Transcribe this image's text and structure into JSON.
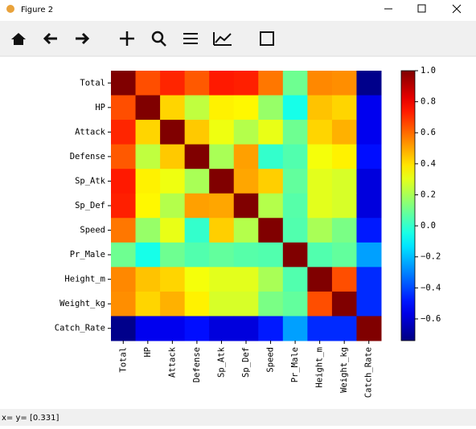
{
  "window": {
    "title": "Figure 2"
  },
  "status": "x= y= [0.331]",
  "chart_data": {
    "type": "heatmap",
    "colormap": "jet",
    "x_categories": [
      "Total",
      "HP",
      "Attack",
      "Defense",
      "Sp_Atk",
      "Sp_Def",
      "Speed",
      "Pr_Male",
      "Height_m",
      "Weight_kg",
      "Catch_Rate"
    ],
    "y_categories": [
      "Total",
      "HP",
      "Attack",
      "Defense",
      "Sp_Atk",
      "Sp_Def",
      "Speed",
      "Pr_Male",
      "Height_m",
      "Weight_kg",
      "Catch_Rate"
    ],
    "values": [
      [
        1,
        0.65,
        0.72,
        0.63,
        0.74,
        0.73,
        0.58,
        0.1,
        0.55,
        0.54,
        -0.72
      ],
      [
        0.65,
        1,
        0.42,
        0.24,
        0.37,
        0.36,
        0.17,
        -0.05,
        0.45,
        0.42,
        -0.55
      ],
      [
        0.72,
        0.42,
        1,
        0.44,
        0.32,
        0.22,
        0.31,
        0.1,
        0.42,
        0.48,
        -0.55
      ],
      [
        0.63,
        0.24,
        0.44,
        1,
        0.2,
        0.51,
        0.0,
        0.05,
        0.33,
        0.37,
        -0.5
      ],
      [
        0.74,
        0.37,
        0.32,
        0.2,
        1,
        0.5,
        0.43,
        0.08,
        0.3,
        0.28,
        -0.58
      ],
      [
        0.73,
        0.36,
        0.22,
        0.51,
        0.5,
        1,
        0.22,
        0.06,
        0.3,
        0.28,
        -0.58
      ],
      [
        0.58,
        0.17,
        0.31,
        0.0,
        0.43,
        0.22,
        1,
        0.05,
        0.2,
        0.12,
        -0.48
      ],
      [
        0.1,
        -0.05,
        0.1,
        0.05,
        0.08,
        0.06,
        0.05,
        1,
        0.05,
        0.08,
        -0.25
      ],
      [
        0.55,
        0.45,
        0.42,
        0.33,
        0.3,
        0.3,
        0.2,
        0.05,
        1,
        0.65,
        -0.45
      ],
      [
        0.54,
        0.42,
        0.48,
        0.37,
        0.28,
        0.28,
        0.12,
        0.08,
        0.65,
        1,
        -0.45
      ],
      [
        -0.72,
        -0.55,
        -0.55,
        -0.5,
        -0.58,
        -0.58,
        -0.48,
        -0.25,
        -0.45,
        -0.45,
        1
      ]
    ],
    "clim": [
      -0.74,
      1
    ],
    "cticks": [
      {
        "value": 1,
        "label": "1.0"
      },
      0.8,
      0.6,
      0.4,
      0.2,
      {
        "value": 0,
        "label": "0.0"
      },
      {
        "value": -0.2,
        "label": "−0.2"
      },
      {
        "value": -0.4,
        "label": "−0.4"
      },
      {
        "value": -0.6,
        "label": "−0.6"
      }
    ]
  }
}
